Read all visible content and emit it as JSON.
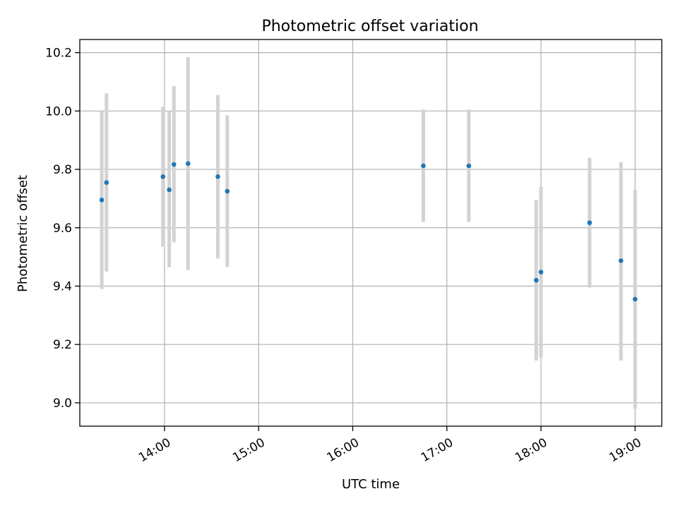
{
  "chart_data": {
    "type": "scatter",
    "title": "Photometric offset variation",
    "xlabel": "UTC time",
    "ylabel": "Photometric offset",
    "xlim": [
      "13:06",
      "19:17"
    ],
    "ylim": [
      8.92,
      10.245
    ],
    "grid": true,
    "x_ticks": [
      "14:00",
      "15:00",
      "16:00",
      "17:00",
      "18:00",
      "19:00"
    ],
    "y_ticks": [
      9.0,
      9.2,
      9.4,
      9.6,
      9.8,
      10.0,
      10.2
    ],
    "y_tick_labels": [
      "9.0",
      "9.2",
      "9.4",
      "9.6",
      "9.8",
      "10.0",
      "10.2"
    ],
    "point_color": "#1f77b4",
    "errorbar_color": "#d3d3d3",
    "points": [
      {
        "x": "13:20",
        "y": 9.695,
        "err_low": 9.39,
        "err_high": 10.0
      },
      {
        "x": "13:23",
        "y": 9.755,
        "err_low": 9.45,
        "err_high": 10.06
      },
      {
        "x": "13:59",
        "y": 9.775,
        "err_low": 9.535,
        "err_high": 10.015
      },
      {
        "x": "14:03",
        "y": 9.73,
        "err_low": 9.465,
        "err_high": 10.0
      },
      {
        "x": "14:06",
        "y": 9.817,
        "err_low": 9.55,
        "err_high": 10.085
      },
      {
        "x": "14:15",
        "y": 9.82,
        "err_low": 9.455,
        "err_high": 10.185
      },
      {
        "x": "14:34",
        "y": 9.775,
        "err_low": 9.495,
        "err_high": 10.055
      },
      {
        "x": "14:40",
        "y": 9.725,
        "err_low": 9.465,
        "err_high": 9.985
      },
      {
        "x": "16:45",
        "y": 9.812,
        "err_low": 9.62,
        "err_high": 10.005
      },
      {
        "x": "17:14",
        "y": 9.812,
        "err_low": 9.62,
        "err_high": 10.005
      },
      {
        "x": "17:57",
        "y": 9.42,
        "err_low": 9.145,
        "err_high": 9.695
      },
      {
        "x": "18:00",
        "y": 9.448,
        "err_low": 9.155,
        "err_high": 9.74
      },
      {
        "x": "18:31",
        "y": 9.617,
        "err_low": 9.395,
        "err_high": 9.84
      },
      {
        "x": "18:51",
        "y": 9.487,
        "err_low": 9.145,
        "err_high": 9.825
      },
      {
        "x": "19:00",
        "y": 9.355,
        "err_low": 8.98,
        "err_high": 9.73
      }
    ]
  }
}
